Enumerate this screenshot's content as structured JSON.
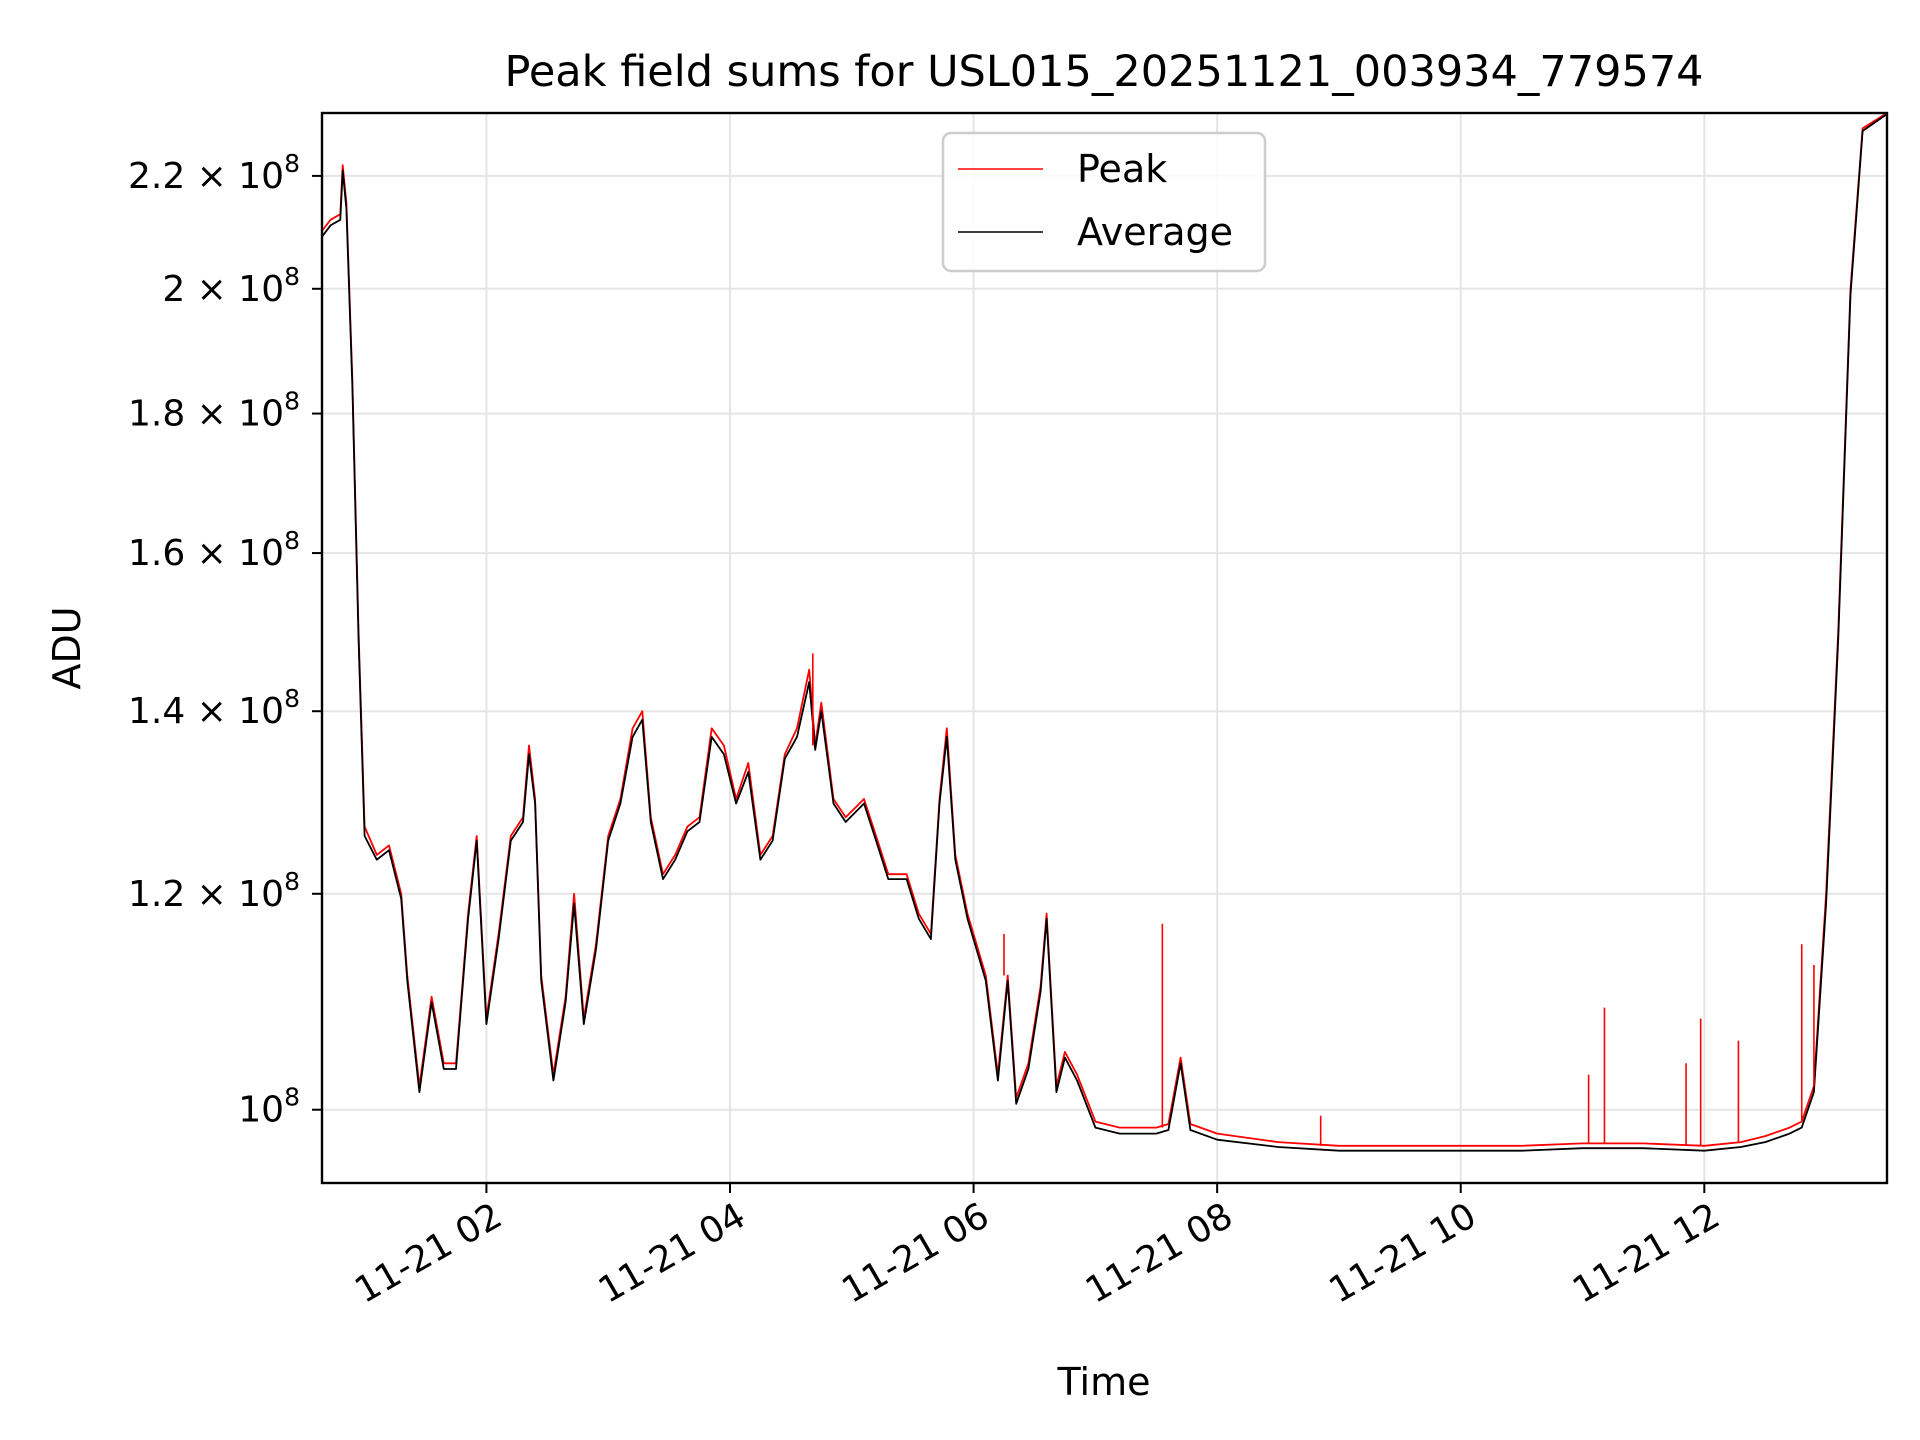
{
  "chart_data": {
    "type": "line",
    "title": "Peak field sums for USL015_20251121_003934_779574",
    "xlabel": "Time",
    "ylabel": "ADU",
    "yscale": "log",
    "xlim": [
      0.65,
      13.5
    ],
    "ylim": [
      94000000,
      232000000
    ],
    "x_unit": "hours since 2025-11-21 00:00",
    "x_ticks": [
      {
        "value": 2,
        "label": "11-21 02"
      },
      {
        "value": 4,
        "label": "11-21 04"
      },
      {
        "value": 6,
        "label": "11-21 06"
      },
      {
        "value": 8,
        "label": "11-21 08"
      },
      {
        "value": 10,
        "label": "11-21 10"
      },
      {
        "value": 12,
        "label": "11-21 12"
      }
    ],
    "y_ticks": [
      {
        "value": 100000000,
        "base": "10",
        "exp": "8"
      },
      {
        "value": 120000000,
        "base": "1.2 × 10",
        "exp": "8"
      },
      {
        "value": 140000000,
        "base": "1.4 × 10",
        "exp": "8"
      },
      {
        "value": 160000000,
        "base": "1.6 × 10",
        "exp": "8"
      },
      {
        "value": 180000000,
        "base": "1.8 × 10",
        "exp": "8"
      },
      {
        "value": 200000000,
        "base": "2 × 10",
        "exp": "8"
      },
      {
        "value": 220000000,
        "base": "2.2 × 10",
        "exp": "8"
      }
    ],
    "grid": true,
    "legend_position": "top-center",
    "series": [
      {
        "name": "Peak",
        "color": "#ff0000",
        "points": [
          [
            0.65,
            210000000
          ],
          [
            0.72,
            212000000
          ],
          [
            0.8,
            213000000
          ],
          [
            0.82,
            222000000
          ],
          [
            0.85,
            215000000
          ],
          [
            0.9,
            185000000
          ],
          [
            0.95,
            150000000
          ],
          [
            1.0,
            127000000
          ],
          [
            1.1,
            124000000
          ],
          [
            1.2,
            125000000
          ],
          [
            1.3,
            120000000
          ],
          [
            1.35,
            112000000
          ],
          [
            1.45,
            102000000
          ],
          [
            1.55,
            110000000
          ],
          [
            1.65,
            104000000
          ],
          [
            1.75,
            104000000
          ],
          [
            1.85,
            118000000
          ],
          [
            1.92,
            126000000
          ],
          [
            2.0,
            108000000
          ],
          [
            2.1,
            116000000
          ],
          [
            2.2,
            126000000
          ],
          [
            2.3,
            128000000
          ],
          [
            2.35,
            136000000
          ],
          [
            2.4,
            130000000
          ],
          [
            2.45,
            112000000
          ],
          [
            2.55,
            103000000
          ],
          [
            2.65,
            110000000
          ],
          [
            2.72,
            120000000
          ],
          [
            2.8,
            108000000
          ],
          [
            2.9,
            115000000
          ],
          [
            3.0,
            126000000
          ],
          [
            3.1,
            130000000
          ],
          [
            3.2,
            138000000
          ],
          [
            3.28,
            140000000
          ],
          [
            3.35,
            128000000
          ],
          [
            3.45,
            122000000
          ],
          [
            3.55,
            124000000
          ],
          [
            3.65,
            127000000
          ],
          [
            3.75,
            128000000
          ],
          [
            3.85,
            138000000
          ],
          [
            3.95,
            136000000
          ],
          [
            4.05,
            130000000
          ],
          [
            4.15,
            134000000
          ],
          [
            4.25,
            124000000
          ],
          [
            4.35,
            126000000
          ],
          [
            4.45,
            135000000
          ],
          [
            4.55,
            138000000
          ],
          [
            4.65,
            145000000
          ],
          [
            4.7,
            136000000
          ],
          [
            4.75,
            141000000
          ],
          [
            4.85,
            130000000
          ],
          [
            4.95,
            128000000
          ],
          [
            5.1,
            130000000
          ],
          [
            5.2,
            126000000
          ],
          [
            5.3,
            122000000
          ],
          [
            5.45,
            122000000
          ],
          [
            5.55,
            118000000
          ],
          [
            5.65,
            116000000
          ],
          [
            5.72,
            130000000
          ],
          [
            5.78,
            138000000
          ],
          [
            5.85,
            124000000
          ],
          [
            5.95,
            118000000
          ],
          [
            6.1,
            112000000
          ],
          [
            6.2,
            103000000
          ],
          [
            6.28,
            112000000
          ],
          [
            6.35,
            101000000
          ],
          [
            6.45,
            104000000
          ],
          [
            6.55,
            111000000
          ],
          [
            6.6,
            118000000
          ],
          [
            6.68,
            102000000
          ],
          [
            6.75,
            105000000
          ],
          [
            6.85,
            103000000
          ],
          [
            7.0,
            99000000
          ],
          [
            7.2,
            98500000
          ],
          [
            7.5,
            98500000
          ],
          [
            7.6,
            98800000
          ],
          [
            7.7,
            104500000
          ],
          [
            7.78,
            98800000
          ],
          [
            8.0,
            98000000
          ],
          [
            8.5,
            97300000
          ],
          [
            9.0,
            97000000
          ],
          [
            9.5,
            97000000
          ],
          [
            10.0,
            97000000
          ],
          [
            10.5,
            97000000
          ],
          [
            11.0,
            97200000
          ],
          [
            11.5,
            97200000
          ],
          [
            12.0,
            97000000
          ],
          [
            12.3,
            97300000
          ],
          [
            12.5,
            97800000
          ],
          [
            12.7,
            98500000
          ],
          [
            12.8,
            99000000
          ],
          [
            12.9,
            102000000
          ],
          [
            13.0,
            120000000
          ],
          [
            13.1,
            150000000
          ],
          [
            13.2,
            200000000
          ],
          [
            13.3,
            229000000
          ],
          [
            13.5,
            232000000
          ]
        ]
      },
      {
        "name": "Average",
        "color": "#000000",
        "points": [
          [
            0.65,
            209000000
          ],
          [
            0.72,
            211000000
          ],
          [
            0.8,
            212000000
          ],
          [
            0.82,
            221000000
          ],
          [
            0.85,
            214000000
          ],
          [
            0.9,
            184000000
          ],
          [
            0.95,
            149000000
          ],
          [
            1.0,
            126000000
          ],
          [
            1.1,
            123500000
          ],
          [
            1.2,
            124500000
          ],
          [
            1.3,
            119500000
          ],
          [
            1.35,
            111500000
          ],
          [
            1.45,
            101500000
          ],
          [
            1.55,
            109500000
          ],
          [
            1.65,
            103500000
          ],
          [
            1.75,
            103500000
          ],
          [
            1.85,
            117500000
          ],
          [
            1.92,
            125500000
          ],
          [
            2.0,
            107500000
          ],
          [
            2.1,
            115500000
          ],
          [
            2.2,
            125500000
          ],
          [
            2.3,
            127500000
          ],
          [
            2.35,
            135000000
          ],
          [
            2.4,
            129500000
          ],
          [
            2.45,
            111500000
          ],
          [
            2.55,
            102500000
          ],
          [
            2.65,
            109500000
          ],
          [
            2.72,
            119000000
          ],
          [
            2.8,
            107500000
          ],
          [
            2.9,
            114500000
          ],
          [
            3.0,
            125500000
          ],
          [
            3.1,
            129500000
          ],
          [
            3.2,
            137000000
          ],
          [
            3.28,
            139000000
          ],
          [
            3.35,
            127500000
          ],
          [
            3.45,
            121500000
          ],
          [
            3.55,
            123500000
          ],
          [
            3.65,
            126500000
          ],
          [
            3.75,
            127500000
          ],
          [
            3.85,
            137000000
          ],
          [
            3.95,
            135000000
          ],
          [
            4.05,
            129500000
          ],
          [
            4.15,
            133000000
          ],
          [
            4.25,
            123500000
          ],
          [
            4.35,
            125500000
          ],
          [
            4.45,
            134500000
          ],
          [
            4.55,
            137000000
          ],
          [
            4.65,
            143500000
          ],
          [
            4.7,
            135500000
          ],
          [
            4.75,
            140000000
          ],
          [
            4.85,
            129500000
          ],
          [
            4.95,
            127500000
          ],
          [
            5.1,
            129500000
          ],
          [
            5.2,
            125500000
          ],
          [
            5.3,
            121500000
          ],
          [
            5.45,
            121500000
          ],
          [
            5.55,
            117500000
          ],
          [
            5.65,
            115500000
          ],
          [
            5.72,
            129500000
          ],
          [
            5.78,
            137000000
          ],
          [
            5.85,
            123500000
          ],
          [
            5.95,
            117500000
          ],
          [
            6.1,
            111500000
          ],
          [
            6.2,
            102500000
          ],
          [
            6.28,
            111500000
          ],
          [
            6.35,
            100500000
          ],
          [
            6.45,
            103500000
          ],
          [
            6.55,
            110500000
          ],
          [
            6.6,
            117500000
          ],
          [
            6.68,
            101500000
          ],
          [
            6.75,
            104500000
          ],
          [
            6.85,
            102500000
          ],
          [
            7.0,
            98500000
          ],
          [
            7.2,
            98000000
          ],
          [
            7.5,
            98000000
          ],
          [
            7.6,
            98300000
          ],
          [
            7.7,
            104000000
          ],
          [
            7.78,
            98300000
          ],
          [
            8.0,
            97500000
          ],
          [
            8.5,
            96900000
          ],
          [
            9.0,
            96600000
          ],
          [
            9.5,
            96600000
          ],
          [
            10.0,
            96600000
          ],
          [
            10.5,
            96600000
          ],
          [
            11.0,
            96800000
          ],
          [
            11.5,
            96800000
          ],
          [
            12.0,
            96600000
          ],
          [
            12.3,
            96900000
          ],
          [
            12.5,
            97300000
          ],
          [
            12.7,
            98000000
          ],
          [
            12.8,
            98500000
          ],
          [
            12.9,
            101500000
          ],
          [
            13.0,
            119000000
          ],
          [
            13.1,
            149000000
          ],
          [
            13.2,
            199000000
          ],
          [
            13.3,
            228500000
          ],
          [
            13.5,
            231800000
          ]
        ]
      }
    ],
    "spikes": [
      {
        "series": "Peak",
        "x": 7.55,
        "y": 117000000
      },
      {
        "series": "Peak",
        "x": 8.85,
        "y": 99500000
      },
      {
        "series": "Peak",
        "x": 11.05,
        "y": 103000000
      },
      {
        "series": "Peak",
        "x": 11.18,
        "y": 109000000
      },
      {
        "series": "Peak",
        "x": 11.85,
        "y": 104000000
      },
      {
        "series": "Peak",
        "x": 11.97,
        "y": 108000000
      },
      {
        "series": "Peak",
        "x": 12.28,
        "y": 106000000
      },
      {
        "series": "Peak",
        "x": 12.8,
        "y": 115000000
      },
      {
        "series": "Peak",
        "x": 12.9,
        "y": 113000000
      },
      {
        "series": "Peak",
        "x": 4.68,
        "y": 147000000
      },
      {
        "series": "Peak",
        "x": 6.25,
        "y": 116000000
      }
    ]
  }
}
